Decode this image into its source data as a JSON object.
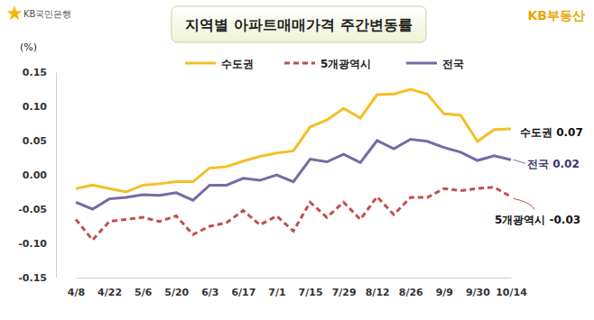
{
  "chart_data": {
    "type": "line",
    "title": "지역별 아파트매매가격 주간변동률",
    "brand_left": "KB국민은행",
    "brand_right": "KB부동산",
    "y_label": "(%)",
    "categories": [
      "4/8",
      null,
      "4/22",
      null,
      "5/6",
      null,
      "5/20",
      null,
      "6/3",
      null,
      "6/17",
      null,
      "7/1",
      null,
      "7/15",
      null,
      "7/29",
      null,
      "8/12",
      null,
      "8/26",
      null,
      "9/9",
      null,
      "9/30",
      null,
      "10/14"
    ],
    "series": [
      {
        "name": "수도권",
        "color": "#f5bf26",
        "line_style": "solid",
        "values": [
          -0.02,
          -0.015,
          -0.02,
          -0.025,
          -0.015,
          -0.013,
          -0.01,
          -0.01,
          0.01,
          0.012,
          0.02,
          0.027,
          0.032,
          0.035,
          0.07,
          0.08,
          0.097,
          0.083,
          0.117,
          0.118,
          0.125,
          0.118,
          0.089,
          0.087,
          0.049,
          0.066,
          0.067
        ]
      },
      {
        "name": "5개광역시",
        "color": "#c0504d",
        "line_style": "dashed",
        "values": [
          -0.065,
          -0.095,
          -0.068,
          -0.065,
          -0.062,
          -0.068,
          -0.06,
          -0.087,
          -0.075,
          -0.07,
          -0.052,
          -0.073,
          -0.06,
          -0.082,
          -0.04,
          -0.062,
          -0.04,
          -0.065,
          -0.032,
          -0.058,
          -0.033,
          -0.033,
          -0.02,
          -0.023,
          -0.02,
          -0.018,
          -0.032
        ]
      },
      {
        "name": "전국",
        "color": "#7a68a6",
        "line_style": "solid",
        "values": [
          -0.04,
          -0.05,
          -0.035,
          -0.033,
          -0.029,
          -0.03,
          -0.026,
          -0.037,
          -0.015,
          -0.015,
          -0.005,
          -0.008,
          0.0,
          -0.01,
          0.023,
          0.019,
          0.03,
          0.018,
          0.05,
          0.038,
          0.052,
          0.049,
          0.04,
          0.033,
          0.021,
          0.028,
          0.022
        ]
      }
    ],
    "annotations": [
      "수도권 0.07",
      "5개광역시 -0.03",
      "전국 0.02"
    ],
    "ylim": [
      -0.15,
      0.15
    ],
    "yticks": [
      -0.15,
      {
        "value": -0.1,
        "label": "-0.10"
      },
      -0.05,
      {
        "value": 0,
        "label": "0.00"
      },
      0.05,
      {
        "value": 0.1,
        "label": "0.10"
      },
      0.15
    ],
    "grid": false,
    "legend": "top"
  }
}
